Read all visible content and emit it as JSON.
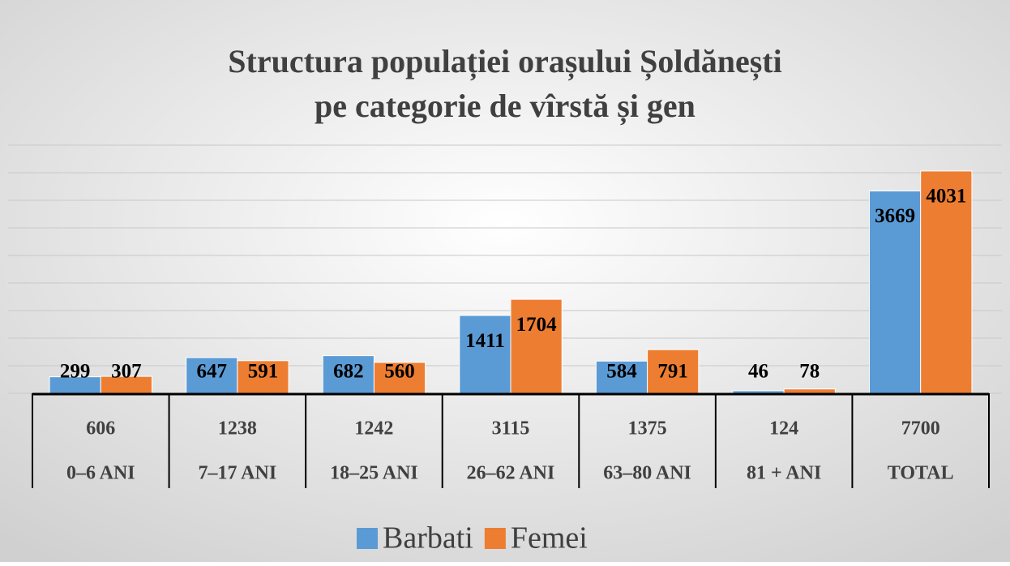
{
  "chart_data": {
    "type": "bar",
    "title": [
      "Structura populației orașului Șoldănești",
      "pe categorie de vîrstă și gen"
    ],
    "categories": [
      "0–6 ANI",
      "7–17 ANI",
      "18–25 ANI",
      "26–62 ANI",
      "63–80 ANI",
      "81 + ANI",
      "TOTAL"
    ],
    "totals": [
      606,
      1238,
      1242,
      3115,
      1375,
      124,
      7700
    ],
    "series": [
      {
        "name": "Barbati",
        "color": "#5b9bd5",
        "values": [
          299,
          647,
          682,
          1411,
          584,
          46,
          3669
        ]
      },
      {
        "name": "Femei",
        "color": "#ed7d31",
        "values": [
          307,
          591,
          560,
          1704,
          791,
          78,
          4031
        ]
      }
    ],
    "ylim": [
      0,
      4500
    ],
    "yticks": [
      0,
      500,
      1000,
      1500,
      2000,
      2500,
      3000,
      3500,
      4000,
      4500
    ],
    "grid": true
  }
}
